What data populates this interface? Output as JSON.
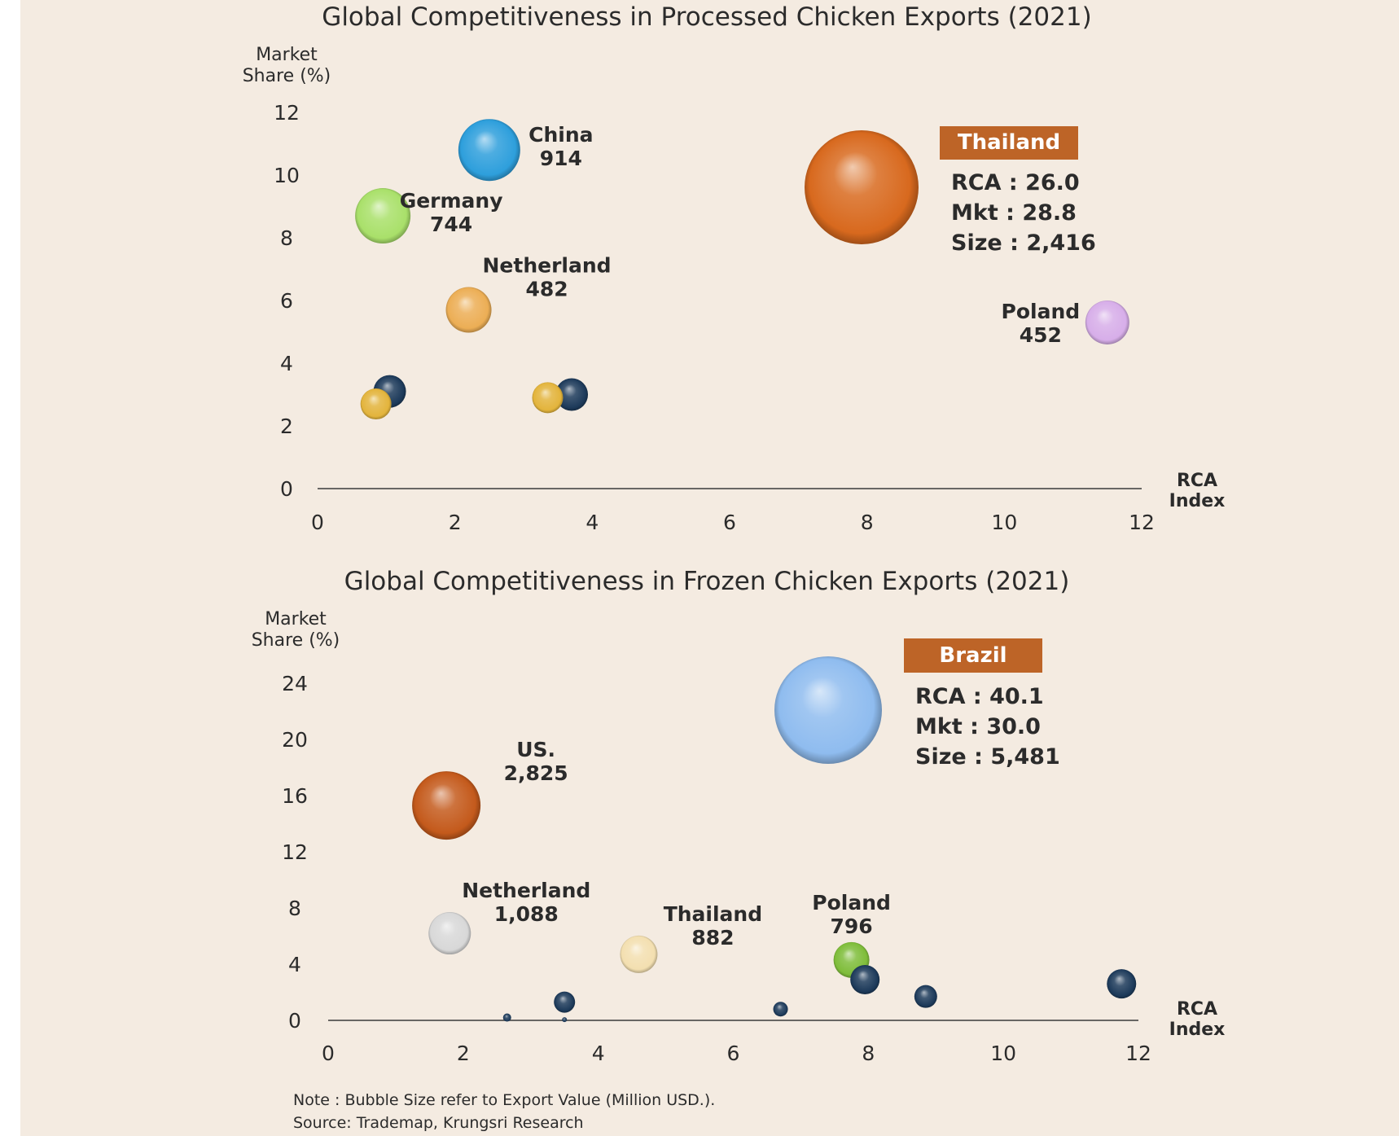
{
  "chart_data": [
    {
      "type": "scatter",
      "title": "Global Competitiveness in Processed Chicken Exports (2021)",
      "ylabel": [
        "Market",
        "Share (%)"
      ],
      "xlabel": [
        "RCA",
        "Index"
      ],
      "xlim": [
        0,
        12
      ],
      "ylim": [
        0,
        12
      ],
      "xticks": [
        "0",
        "2",
        "4",
        "6",
        "8",
        "10",
        "12"
      ],
      "yticks": [
        "0",
        "2",
        "4",
        "6",
        "8",
        "10",
        "12"
      ],
      "points": [
        {
          "name": "China",
          "value": "914",
          "x": 2.5,
          "y": 10.8,
          "r": 38,
          "color": "#2e9fdc",
          "label_side": "right"
        },
        {
          "name": "Germany",
          "value": "744",
          "x": 0.95,
          "y": 8.7,
          "r": 34,
          "color": "#a9e06a",
          "label_side": "right"
        },
        {
          "name": "Netherland",
          "value": "482",
          "x": 2.2,
          "y": 5.7,
          "r": 28,
          "color": "#ecae55",
          "label_side": "upper-right"
        },
        {
          "name": "Poland",
          "value": "452",
          "x": 11.5,
          "y": 5.3,
          "r": 27,
          "color": "#d7aee9",
          "label_side": "left"
        },
        {
          "name": "",
          "value": "",
          "x": 1.05,
          "y": 3.1,
          "r": 20,
          "color": "#1d3a5a"
        },
        {
          "name": "",
          "value": "",
          "x": 0.85,
          "y": 2.7,
          "r": 19,
          "color": "#e3b43c"
        },
        {
          "name": "",
          "value": "",
          "x": 3.7,
          "y": 3.0,
          "r": 20,
          "color": "#1d3a5a"
        },
        {
          "name": "",
          "value": "",
          "x": 3.35,
          "y": 2.9,
          "r": 19,
          "color": "#e3b43c"
        }
      ],
      "callout": {
        "header": "Thailand",
        "lines": [
          "RCA : 26.0",
          "Mkt : 28.8",
          "Size : 2,416"
        ],
        "color": "#d8691e",
        "box_color": "#bd6427"
      }
    },
    {
      "type": "scatter",
      "title": "Global Competitiveness in Frozen Chicken Exports (2021)",
      "ylabel": [
        "Market",
        "Share (%)"
      ],
      "xlabel": [
        "RCA",
        "Index"
      ],
      "xlim": [
        0,
        12
      ],
      "ylim": [
        0,
        24
      ],
      "xticks": [
        "0",
        "2",
        "4",
        "6",
        "8",
        "10",
        "12"
      ],
      "yticks": [
        "0",
        "4",
        "8",
        "12",
        "16",
        "20",
        "24"
      ],
      "points": [
        {
          "name": "US.",
          "value": "2,825",
          "x": 1.75,
          "y": 15.3,
          "r": 42,
          "color": "#c45a1c",
          "label_side": "upper-right"
        },
        {
          "name": "Netherland",
          "value": "1,088",
          "x": 1.8,
          "y": 6.2,
          "r": 26,
          "color": "#d8d8d8",
          "label_side": "upper-right"
        },
        {
          "name": "Thailand",
          "value": "882",
          "x": 4.6,
          "y": 4.7,
          "r": 23,
          "color": "#f3dfb0",
          "label_side": "upper-right"
        },
        {
          "name": "Poland",
          "value": "796",
          "x": 7.75,
          "y": 4.3,
          "r": 22,
          "color": "#7fbd3a",
          "label_side": "above"
        },
        {
          "name": "",
          "value": "",
          "x": 7.95,
          "y": 2.9,
          "r": 18,
          "color": "#1d3a5a"
        },
        {
          "name": "",
          "value": "",
          "x": 8.85,
          "y": 1.7,
          "r": 14,
          "color": "#1d3a5a"
        },
        {
          "name": "",
          "value": "",
          "x": 11.75,
          "y": 2.6,
          "r": 18,
          "color": "#1d3a5a"
        },
        {
          "name": "",
          "value": "",
          "x": 3.5,
          "y": 1.3,
          "r": 13,
          "color": "#1d3a5a"
        },
        {
          "name": "",
          "value": "",
          "x": 6.7,
          "y": 0.8,
          "r": 9,
          "color": "#1d3a5a"
        },
        {
          "name": "",
          "value": "",
          "x": 2.65,
          "y": 0.2,
          "r": 5,
          "color": "#1d3a5a"
        },
        {
          "name": "",
          "value": "",
          "x": 3.5,
          "y": 0.05,
          "r": 3,
          "color": "#1d3a5a"
        }
      ],
      "callout": {
        "header": "Brazil",
        "lines": [
          "RCA : 40.1",
          "Mkt : 30.0",
          "Size : 5,481"
        ],
        "color": "#8fbcef",
        "box_color": "#bd6427"
      }
    }
  ],
  "footer": {
    "note": "Note : Bubble Size refer to Export Value (Million USD.).",
    "source": "Source: Trademap, Krungsri Research"
  }
}
